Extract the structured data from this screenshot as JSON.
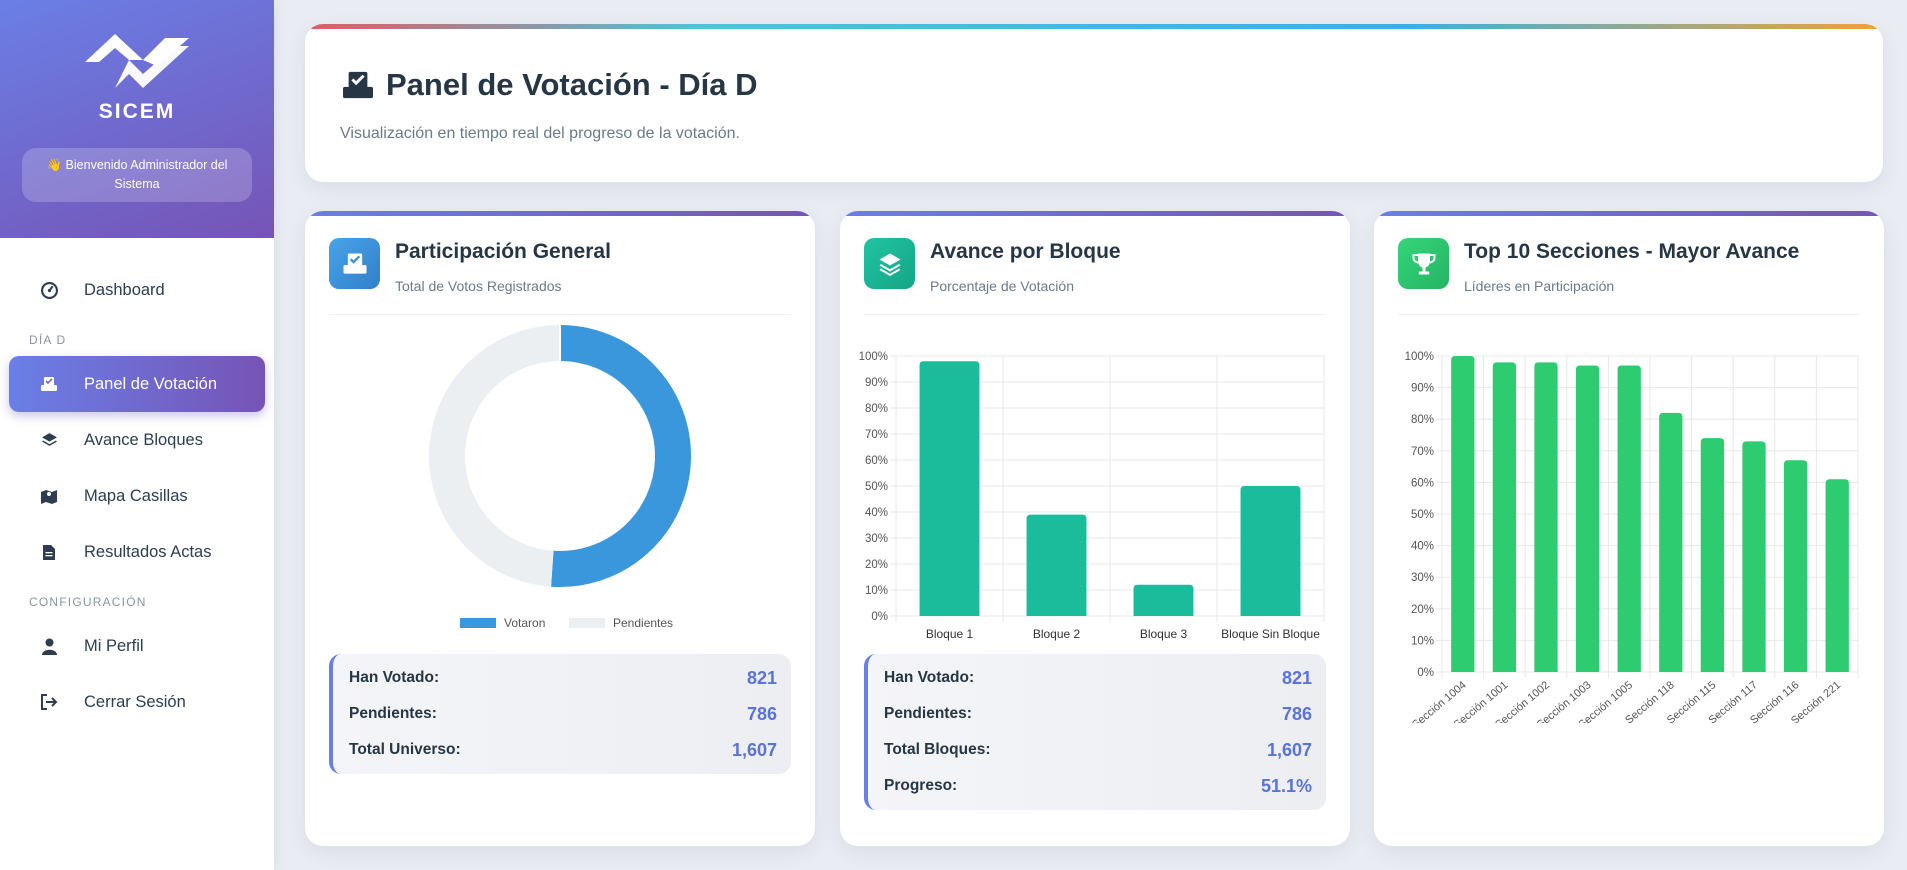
{
  "sidebar": {
    "brand": "SICEM",
    "welcome": "👋 Bienvenido Administrador del Sistema",
    "nav": {
      "dashboard": "Dashboard",
      "section_dia_d": "DÍA D",
      "panel_votacion": "Panel de Votación",
      "avance_bloques": "Avance Bloques",
      "mapa_casillas": "Mapa Casillas",
      "resultados_actas": "Resultados Actas",
      "section_config": "CONFIGURACIÓN",
      "mi_perfil": "Mi Perfil",
      "cerrar_sesion": "Cerrar Sesión"
    }
  },
  "header": {
    "title": "Panel de Votación - Día D",
    "subtitle": "Visualización en tiempo real del progreso de la votación."
  },
  "participacion": {
    "title": "Participación General",
    "subtitle": "Total de Votos Registrados",
    "stats": [
      {
        "label": "Han Votado:",
        "value": "821"
      },
      {
        "label": "Pendientes:",
        "value": "786"
      },
      {
        "label": "Total Universo:",
        "value": "1,607"
      }
    ]
  },
  "avance": {
    "title": "Avance por Bloque",
    "subtitle": "Porcentaje de Votación",
    "stats": [
      {
        "label": "Han Votado:",
        "value": "821"
      },
      {
        "label": "Pendientes:",
        "value": "786"
      },
      {
        "label": "Total Bloques:",
        "value": "1,607"
      },
      {
        "label": "Progreso:",
        "value": "51.1%"
      }
    ]
  },
  "top10": {
    "title": "Top 10 Secciones - Mayor Avance",
    "subtitle": "Líderes en Participación"
  },
  "colors": {
    "accent": "#6a7fe6",
    "accent2": "#7654b6",
    "donut_votaron": "#3b97dc",
    "donut_pendientes": "#eceff1",
    "bloque_bar": "#1abc9c",
    "top_bar": "#2ecc71"
  },
  "chart_data": [
    {
      "type": "pie",
      "labels": [
        "Votaron",
        "Pendientes"
      ],
      "values": [
        821,
        786
      ],
      "legend": [
        "Votaron",
        "Pendientes"
      ],
      "legend_position": "bottom"
    },
    {
      "type": "bar",
      "categories": [
        "Bloque 1",
        "Bloque 2",
        "Bloque 3",
        "Bloque Sin Bloque"
      ],
      "values": [
        98,
        39,
        12,
        50
      ],
      "ylim": [
        0,
        100
      ],
      "yticks": [
        "0%",
        "10%",
        "20%",
        "30%",
        "40%",
        "50%",
        "60%",
        "70%",
        "80%",
        "90%",
        "100%"
      ],
      "grid": true
    },
    {
      "type": "bar",
      "categories": [
        "Sección 1004",
        "Sección 1001",
        "Sección 1002",
        "Sección 1003",
        "Sección 1005",
        "Sección 118",
        "Sección 115",
        "Sección 117",
        "Sección 116",
        "Sección 221"
      ],
      "values": [
        100,
        98,
        98,
        97,
        97,
        82,
        74,
        73,
        67,
        61
      ],
      "ylim": [
        0,
        100
      ],
      "yticks": [
        "0%",
        "10%",
        "20%",
        "30%",
        "40%",
        "50%",
        "60%",
        "70%",
        "80%",
        "90%",
        "100%"
      ],
      "grid": true
    }
  ]
}
